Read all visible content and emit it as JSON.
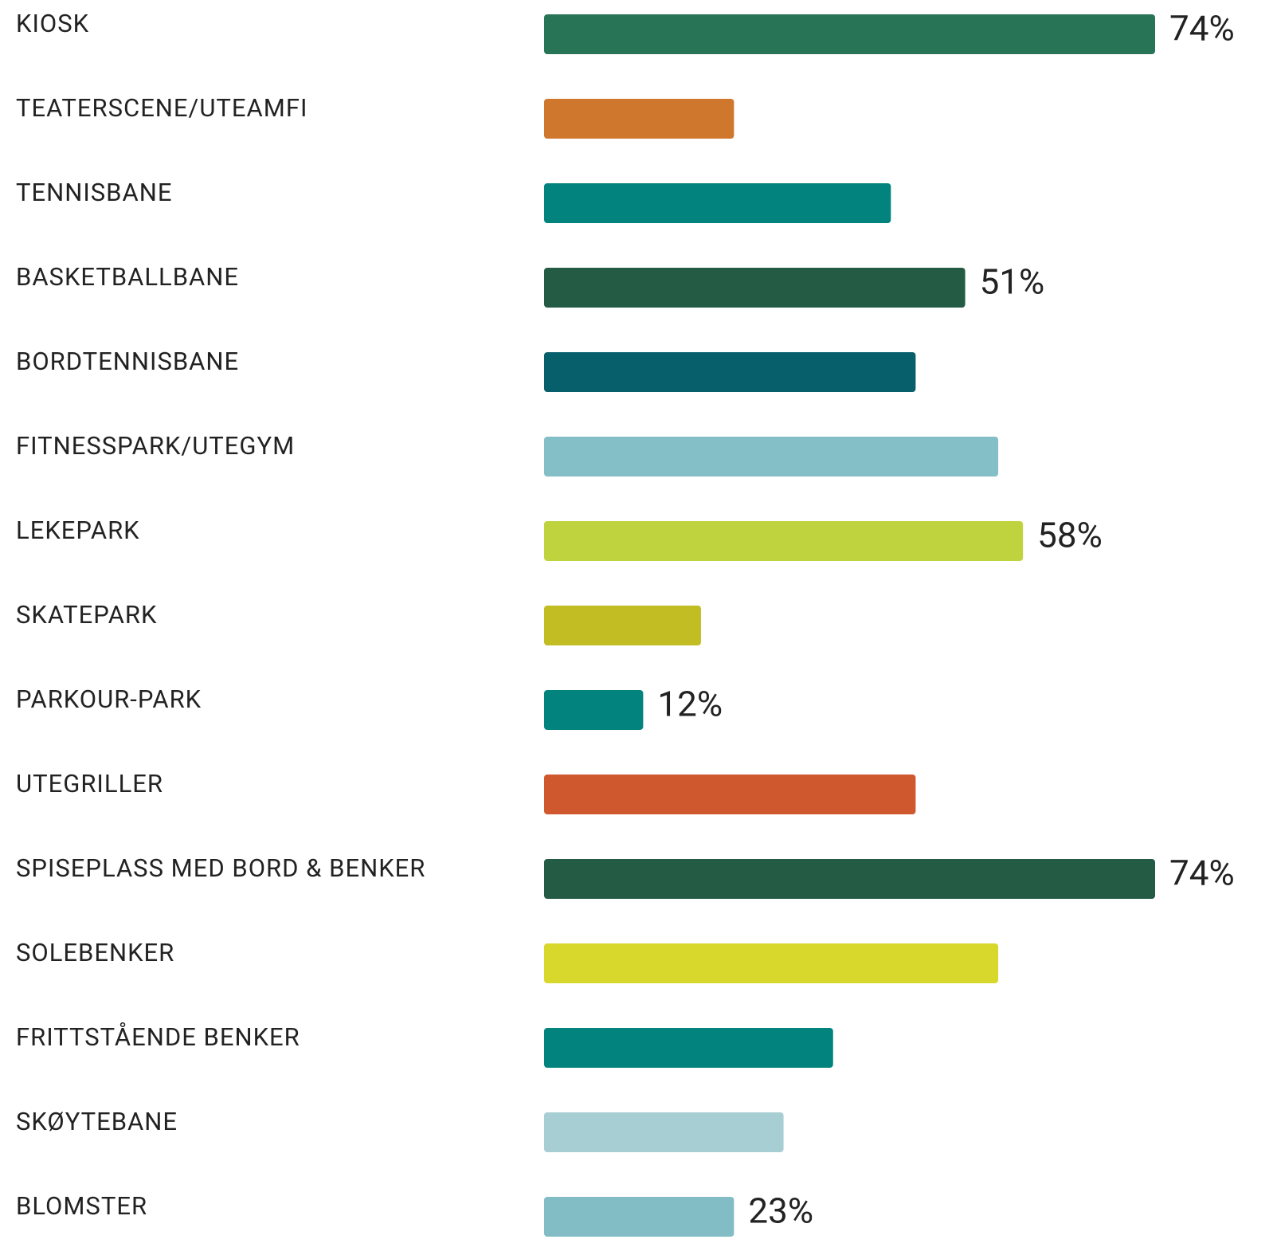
{
  "chart_data": {
    "type": "bar",
    "categories": [
      "KIOSK",
      "TEATERSCENE/UTEAMFI",
      "TENNISBANE",
      "BASKETBALLBANE",
      "BORDTENNISBANE",
      "FITNESSPARK/UTEGYM",
      "LEKEPARK",
      "SKATEPARK",
      "PARKOUR-PARK",
      "UTEGRILLER",
      "SPISEPLASS MED BORD & BENKER",
      "SOLEBENKER",
      "FRITTSTÅENDE BENKER",
      "SKØYTEBANE",
      "BLOMSTER"
    ],
    "values": [
      74,
      23,
      42,
      51,
      45,
      55,
      58,
      19,
      12,
      45,
      74,
      55,
      35,
      29,
      23
    ],
    "value_labels": [
      "74%",
      null,
      null,
      "51%",
      null,
      null,
      "58%",
      null,
      "12%",
      null,
      "74%",
      null,
      null,
      null,
      "23%"
    ],
    "colors": [
      "#277556",
      "#d0772e",
      "#02837e",
      "#245b45",
      "#065f6b",
      "#84bec6",
      "#bfd33e",
      "#c2bd22",
      "#02837e",
      "#d0582e",
      "#245b45",
      "#d8d72c",
      "#02837e",
      "#a6ced3",
      "#82bdc6"
    ]
  }
}
